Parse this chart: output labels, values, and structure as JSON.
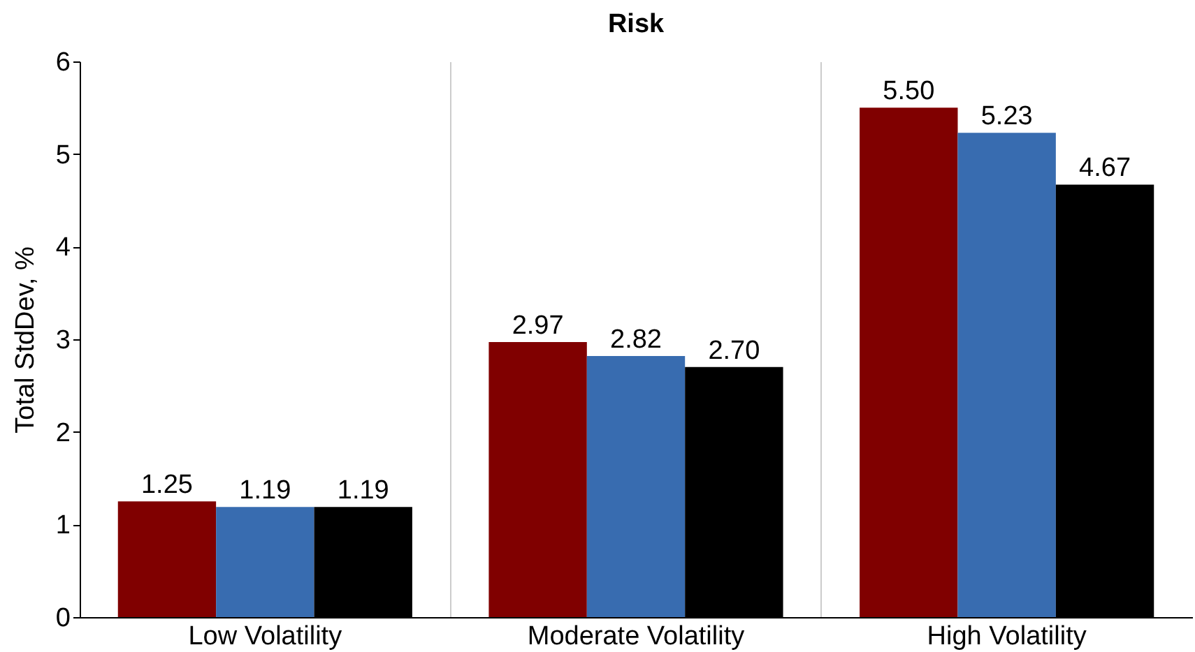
{
  "chart_data": {
    "type": "bar",
    "title": "Risk",
    "ylabel": "Total StdDev, %",
    "categories": [
      "Low Volatility",
      "Moderate Volatility",
      "High Volatility"
    ],
    "series": [
      {
        "color": "#800000",
        "values": [
          1.25,
          2.97,
          5.5
        ],
        "value_labels": [
          "1.25",
          "2.97",
          "5.50"
        ]
      },
      {
        "color": "#386cb0",
        "values": [
          1.19,
          2.82,
          5.23
        ],
        "value_labels": [
          "1.19",
          "2.82",
          "5.23"
        ]
      },
      {
        "color": "#000000",
        "values": [
          1.19,
          2.7,
          4.67
        ],
        "value_labels": [
          "1.19",
          "2.70",
          "4.67"
        ]
      }
    ],
    "ylim": [
      0,
      6
    ],
    "yticks": [
      0,
      1,
      2,
      3,
      4,
      5,
      6
    ],
    "grid": "x"
  }
}
